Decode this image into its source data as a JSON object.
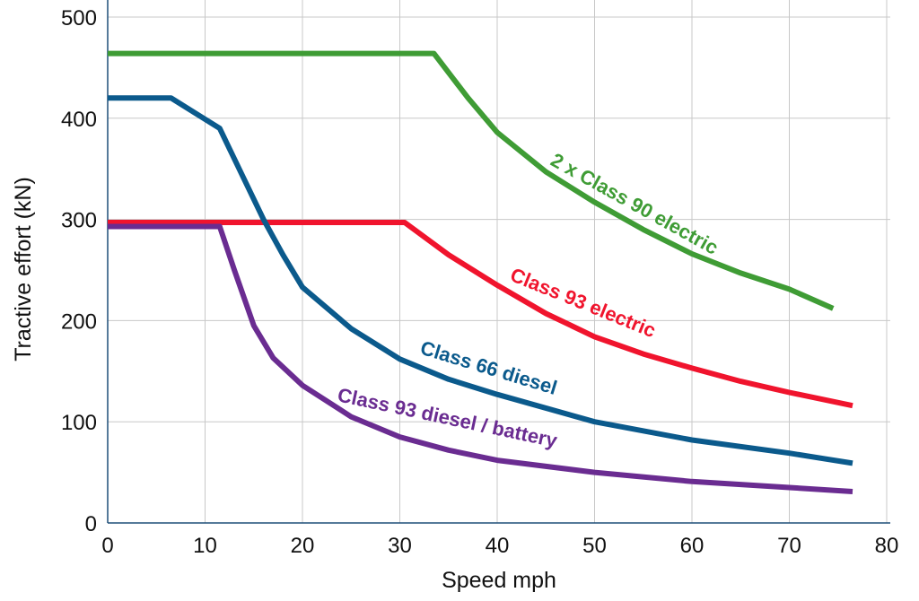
{
  "chart_data": {
    "type": "line",
    "title": "",
    "xlabel": "Speed mph",
    "ylabel": "Tractive effort (kN)",
    "xlim": [
      0,
      80
    ],
    "ylim": [
      0,
      500
    ],
    "xticks": [
      0,
      10,
      20,
      30,
      40,
      50,
      60,
      70,
      80
    ],
    "yticks": [
      0,
      100,
      200,
      300,
      400,
      500
    ],
    "grid": true,
    "series": [
      {
        "name": "2 x Class 90 electric",
        "color": "#3f9c35",
        "x": [
          0,
          33.5,
          37,
          40,
          45,
          50,
          55,
          60,
          65,
          70,
          74.5
        ],
        "y": [
          464,
          464,
          420,
          386,
          347,
          317,
          290,
          266,
          247,
          231,
          212
        ]
      },
      {
        "name": "Class 93 electric",
        "color": "#f0142d",
        "x": [
          0,
          30.5,
          35,
          40,
          45,
          50,
          55,
          60,
          65,
          70,
          76.5
        ],
        "y": [
          297,
          297,
          265,
          235,
          207,
          184,
          167,
          153,
          140,
          129,
          116
        ]
      },
      {
        "name": "Class 66 diesel",
        "color": "#0b5a8c",
        "x": [
          0,
          6.5,
          11.5,
          14,
          16,
          18,
          20,
          25,
          30,
          35,
          40,
          50,
          60,
          70,
          76.5
        ],
        "y": [
          420,
          420,
          390,
          340,
          300,
          265,
          233,
          192,
          162,
          142,
          127,
          100,
          82,
          69,
          59
        ]
      },
      {
        "name": "Class 93 diesel / battery",
        "color": "#6a2c91",
        "x": [
          0,
          11.5,
          13,
          15,
          17,
          20,
          25,
          30,
          35,
          40,
          50,
          60,
          70,
          76.5
        ],
        "y": [
          293,
          293,
          250,
          195,
          163,
          136,
          105,
          85,
          72,
          62,
          50,
          41,
          35,
          31
        ]
      }
    ]
  }
}
